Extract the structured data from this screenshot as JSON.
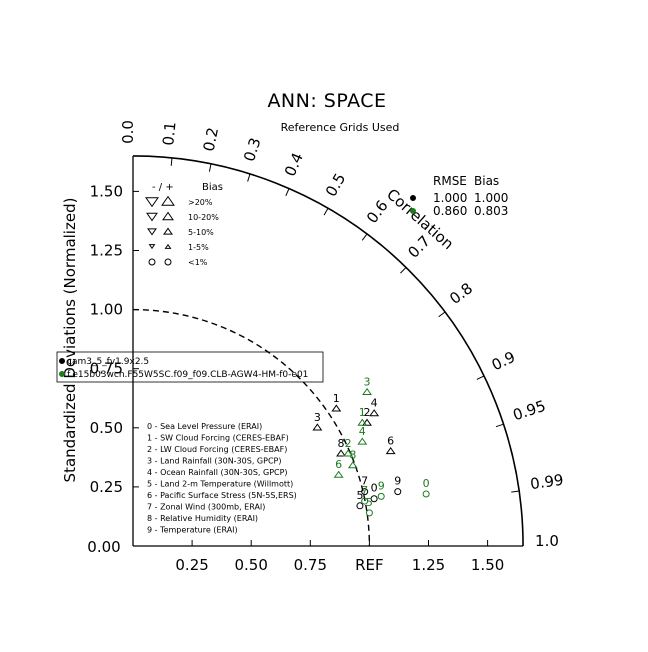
{
  "chart_data": {
    "type": "taylor-diagram",
    "title": "ANN: SPACE",
    "subtitle": "Reference Grids Used",
    "xlabel": "",
    "ylabel": "Standardized Deviations (Normalized)",
    "arc_label": "Correlation",
    "std_ticks": [
      "0.00",
      "0.25",
      "0.50",
      "0.75",
      "REF",
      "1.25",
      "1.50"
    ],
    "std_tick_values": [
      0,
      0.25,
      0.5,
      0.75,
      1.0,
      1.25,
      1.5
    ],
    "y_ticks": [
      "0.00",
      "0.25",
      "0.50",
      "0.75",
      "1.00",
      "1.25",
      "1.50"
    ],
    "std_max": 1.65,
    "corr_ticks": [
      "0.0",
      "0.1",
      "0.2",
      "0.3",
      "0.4",
      "0.5",
      "0.6",
      "0.7",
      "0.8",
      "0.9",
      "0.95",
      "0.99",
      "1.0"
    ],
    "corr_tick_values": [
      0.0,
      0.1,
      0.2,
      0.3,
      0.4,
      0.5,
      0.6,
      0.7,
      0.8,
      0.9,
      0.95,
      0.99,
      1.0
    ],
    "ref_std": 1.0,
    "bias_legend": {
      "header": [
        "- / +",
        "Bias"
      ],
      "rows": [
        ">20%",
        "10-20%",
        "5-10%",
        "1-5%",
        "<1%"
      ]
    },
    "rmse_legend": {
      "header": [
        "RMSE",
        "Bias"
      ],
      "rows": [
        {
          "rmse": "1.000",
          "bias": "1.000",
          "color": "#000000"
        },
        {
          "rmse": "0.860",
          "bias": "0.803",
          "color": "#1e7a1e"
        }
      ]
    },
    "case_legend": [
      "cam3_5_fv1.9x2.5",
      "f.e15b03wcn.F55W5SC.f09_f09.CLB-AGW4-HM-f0-e01"
    ],
    "variables": [
      "0 - Sea Level Pressure (ERAI)",
      "1 - SW Cloud Forcing (CERES-EBAF)",
      "2 - LW Cloud Forcing (CERES-EBAF)",
      "3 - Land Rainfall (30N-30S, GPCP)",
      "4 - Ocean Rainfall (30N-30S, GPCP)",
      "5 - Land 2-m Temperature (Willmott)",
      "6 - Pacific Surface Stress (5N-5S,ERS)",
      "7 - Zonal Wind (300mb, ERAI)",
      "8 - Relative Humidity (ERAI)",
      "9 - Temperature (ERAI)"
    ],
    "series": [
      {
        "name": "cam3_5_fv1.9x2.5",
        "color": "#000000",
        "points": [
          {
            "id": "0",
            "x": 1.02,
            "y": 0.2,
            "marker": "circle"
          },
          {
            "id": "1",
            "x": 0.86,
            "y": 0.58,
            "marker": "up"
          },
          {
            "id": "2",
            "x": 0.99,
            "y": 0.52,
            "marker": "up"
          },
          {
            "id": "3",
            "x": 0.78,
            "y": 0.5,
            "marker": "up"
          },
          {
            "id": "4",
            "x": 1.02,
            "y": 0.56,
            "marker": "up"
          },
          {
            "id": "5",
            "x": 0.96,
            "y": 0.17,
            "marker": "circle"
          },
          {
            "id": "6",
            "x": 1.09,
            "y": 0.4,
            "marker": "up"
          },
          {
            "id": "7",
            "x": 0.98,
            "y": 0.23,
            "marker": "circle"
          },
          {
            "id": "8",
            "x": 0.88,
            "y": 0.39,
            "marker": "up"
          },
          {
            "id": "9",
            "x": 1.12,
            "y": 0.23,
            "marker": "circle"
          }
        ]
      },
      {
        "name": "f.e15b03wcn.F55W5SC.f09_f09.CLB-AGW4-HM-f0-e01",
        "color": "#1e7a1e",
        "points": [
          {
            "id": "0",
            "x": 1.24,
            "y": 0.22,
            "marker": "circle"
          },
          {
            "id": "1",
            "x": 0.97,
            "y": 0.52,
            "marker": "up"
          },
          {
            "id": "2",
            "x": 0.91,
            "y": 0.39,
            "marker": "up"
          },
          {
            "id": "3",
            "x": 0.99,
            "y": 0.65,
            "marker": "up"
          },
          {
            "id": "4",
            "x": 0.97,
            "y": 0.44,
            "marker": "up"
          },
          {
            "id": "5",
            "x": 1.0,
            "y": 0.14,
            "marker": "circle"
          },
          {
            "id": "6",
            "x": 0.87,
            "y": 0.3,
            "marker": "up"
          },
          {
            "id": "7",
            "x": 0.98,
            "y": 0.19,
            "marker": "circle"
          },
          {
            "id": "8",
            "x": 0.93,
            "y": 0.34,
            "marker": "up"
          },
          {
            "id": "9",
            "x": 1.05,
            "y": 0.21,
            "marker": "circle"
          }
        ]
      }
    ]
  }
}
